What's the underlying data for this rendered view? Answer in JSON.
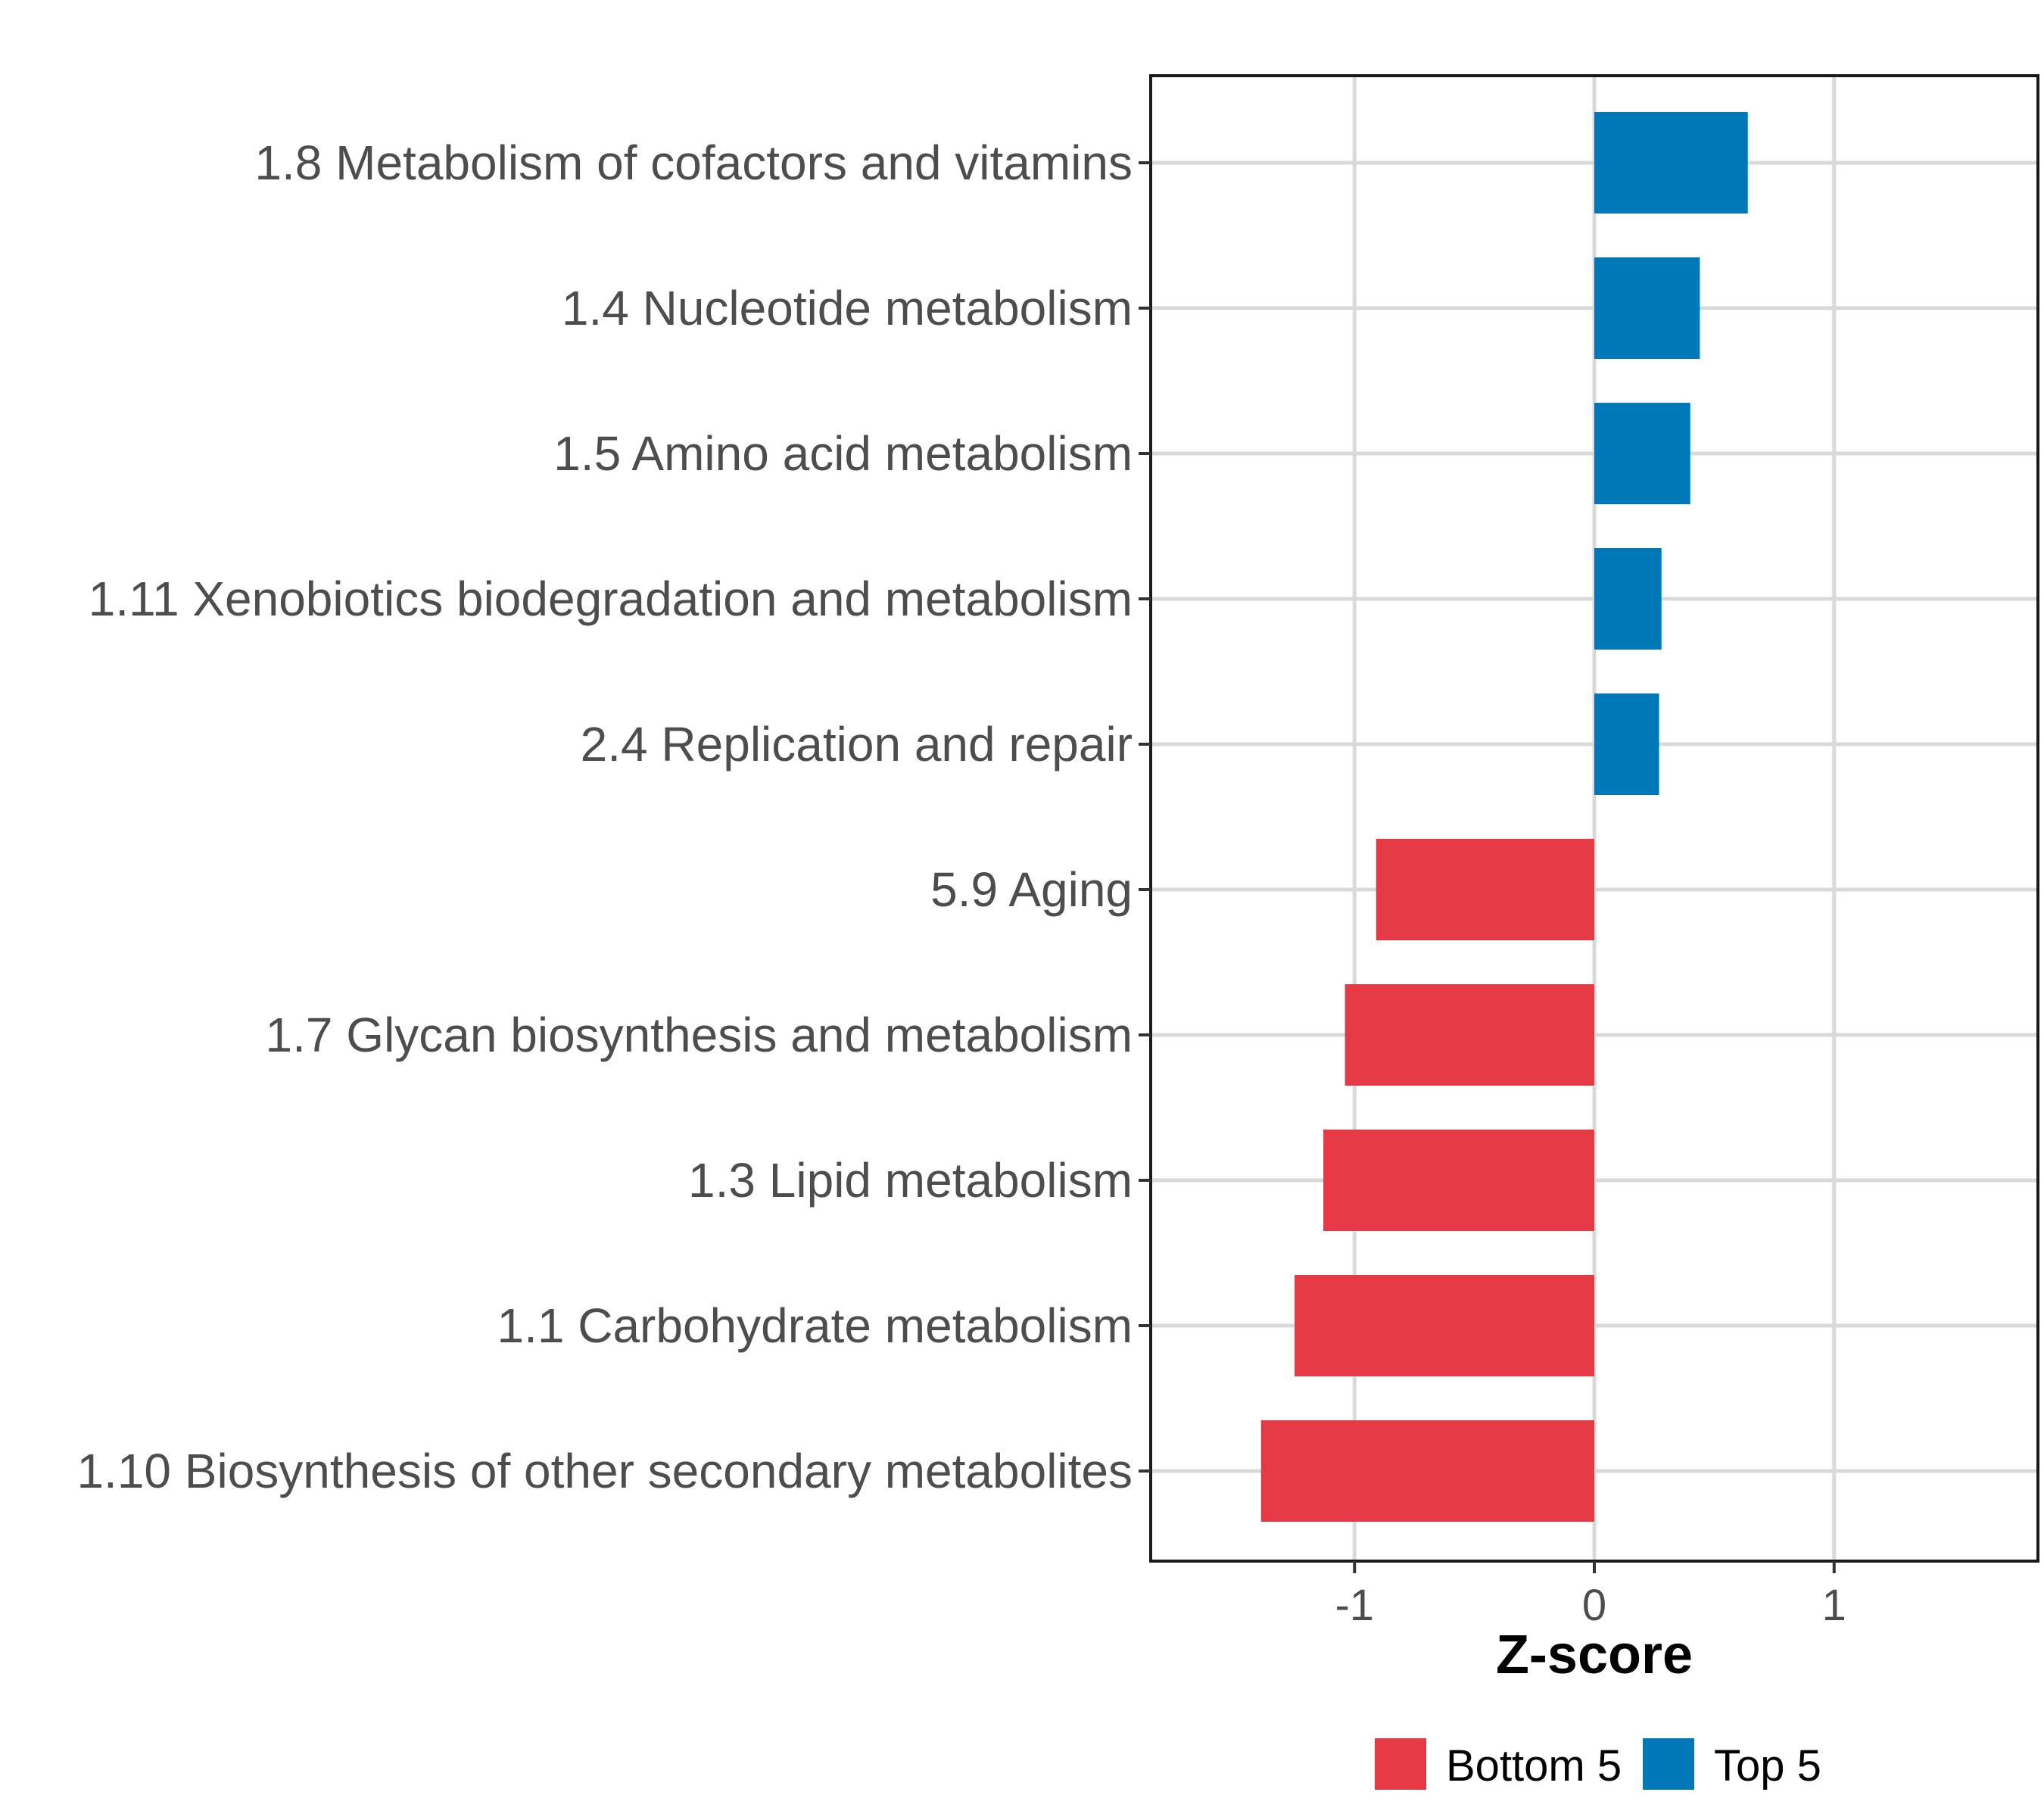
{
  "chart_data": {
    "type": "bar",
    "orientation": "horizontal",
    "title": "",
    "xlabel": "Z-score",
    "ylabel": "",
    "xlim": [
      -1.85,
      1.85
    ],
    "xticks": [
      -1,
      0,
      1
    ],
    "xtick_labels": [
      "-1",
      "0",
      "1"
    ],
    "grid": true,
    "legend_position": "bottom",
    "categories": [
      "1.8 Metabolism of cofactors and vitamins",
      "1.4 Nucleotide metabolism",
      "1.5 Amino acid metabolism",
      "1.11 Xenobiotics biodegradation and metabolism",
      "2.4 Replication and repair",
      "5.9 Aging",
      "1.7 Glycan biosynthesis and metabolism",
      "1.3 Lipid metabolism",
      "1.1 Carbohydrate metabolism",
      "1.10 Biosynthesis of other secondary metabolites"
    ],
    "values": [
      0.64,
      0.44,
      0.4,
      0.28,
      0.27,
      -0.91,
      -1.04,
      -1.13,
      -1.25,
      -1.39
    ],
    "groups": [
      "Top 5",
      "Top 5",
      "Top 5",
      "Top 5",
      "Top 5",
      "Bottom 5",
      "Bottom 5",
      "Bottom 5",
      "Bottom 5",
      "Bottom 5"
    ],
    "legend": [
      {
        "name": "Bottom 5",
        "color": "#e63946"
      },
      {
        "name": "Top 5",
        "color": "#0077b6"
      }
    ]
  }
}
